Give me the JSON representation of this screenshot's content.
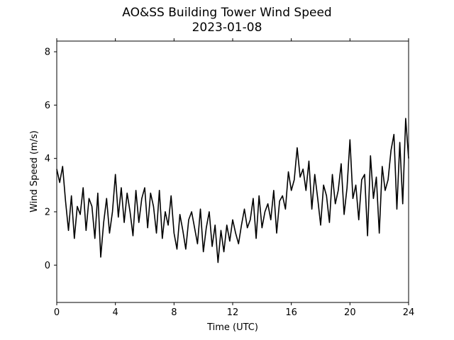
{
  "chart_data": {
    "type": "line",
    "title": "AO&SS Building Tower Wind Speed",
    "subtitle": "2023-01-08",
    "xlabel": "Time (UTC)",
    "ylabel": "Wind Speed (m/s)",
    "xlim": [
      0,
      24
    ],
    "ylim": [
      -1.4,
      8.4
    ],
    "xticks": [
      0,
      4,
      8,
      12,
      16,
      20,
      24
    ],
    "yticks": [
      0,
      2,
      4,
      6,
      8
    ],
    "grid": false,
    "legend": "none",
    "series": [
      {
        "color": "#000000",
        "x": [
          0,
          0.2,
          0.4,
          0.6,
          0.8,
          1,
          1.2,
          1.4,
          1.6,
          1.8,
          2,
          2.2,
          2.4,
          2.6,
          2.8,
          3,
          3.2,
          3.4,
          3.6,
          3.8,
          4,
          4.2,
          4.4,
          4.6,
          4.8,
          5,
          5.2,
          5.4,
          5.6,
          5.8,
          6,
          6.2,
          6.4,
          6.6,
          6.8,
          7,
          7.2,
          7.4,
          7.6,
          7.8,
          8,
          8.2,
          8.4,
          8.6,
          8.8,
          9,
          9.2,
          9.4,
          9.6,
          9.8,
          10,
          10.2,
          10.4,
          10.6,
          10.8,
          11,
          11.2,
          11.4,
          11.6,
          11.8,
          12,
          12.2,
          12.4,
          12.6,
          12.8,
          13,
          13.2,
          13.4,
          13.6,
          13.8,
          14,
          14.2,
          14.4,
          14.6,
          14.8,
          15,
          15.2,
          15.4,
          15.6,
          15.8,
          16,
          16.2,
          16.4,
          16.6,
          16.8,
          17,
          17.2,
          17.4,
          17.6,
          17.8,
          18,
          18.2,
          18.4,
          18.6,
          18.8,
          19,
          19.2,
          19.4,
          19.6,
          19.8,
          20,
          20.2,
          20.4,
          20.6,
          20.8,
          21,
          21.2,
          21.4,
          21.6,
          21.8,
          22,
          22.2,
          22.4,
          22.6,
          22.8,
          23,
          23.2,
          23.4,
          23.6,
          23.8,
          24
        ],
        "y": [
          3.6,
          3.1,
          3.7,
          2.4,
          1.3,
          2.6,
          1.0,
          2.2,
          1.9,
          2.9,
          1.3,
          2.5,
          2.2,
          1.0,
          2.7,
          0.3,
          1.6,
          2.5,
          1.2,
          2.0,
          3.4,
          1.8,
          2.9,
          1.6,
          2.7,
          2.0,
          1.1,
          2.8,
          1.6,
          2.5,
          2.9,
          1.4,
          2.7,
          2.2,
          1.2,
          2.8,
          1.0,
          2.0,
          1.5,
          2.6,
          1.2,
          0.6,
          1.9,
          1.3,
          0.6,
          1.7,
          2.0,
          1.4,
          0.8,
          2.1,
          0.5,
          1.4,
          2.0,
          0.7,
          1.5,
          0.1,
          1.3,
          0.5,
          1.5,
          0.9,
          1.7,
          1.2,
          0.8,
          1.5,
          2.1,
          1.4,
          1.7,
          2.5,
          1.0,
          2.6,
          1.4,
          2.0,
          2.3,
          1.7,
          2.8,
          1.2,
          2.4,
          2.6,
          2.1,
          3.5,
          2.8,
          3.2,
          4.4,
          3.3,
          3.6,
          2.8,
          3.9,
          2.1,
          3.4,
          2.5,
          1.5,
          3.0,
          2.6,
          1.6,
          3.4,
          2.3,
          2.8,
          3.8,
          1.9,
          2.9,
          4.7,
          2.5,
          3.0,
          1.7,
          3.2,
          3.4,
          1.1,
          4.1,
          2.5,
          3.3,
          1.2,
          3.7,
          2.8,
          3.2,
          4.3,
          4.9,
          2.1,
          4.6,
          2.3,
          5.5,
          4.0
        ]
      }
    ]
  }
}
